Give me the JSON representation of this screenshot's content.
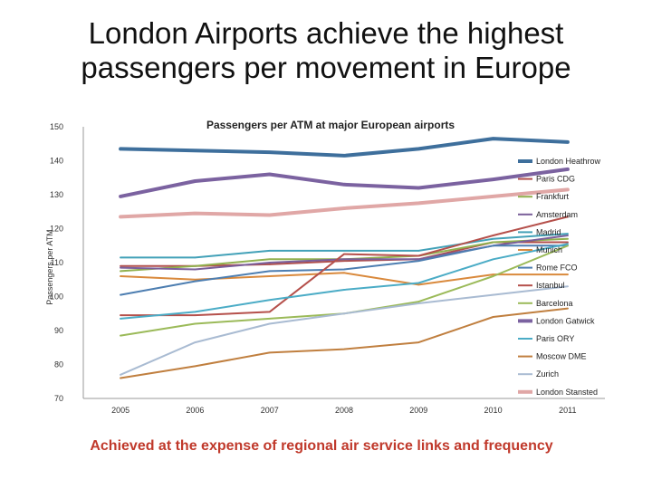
{
  "slide": {
    "title_line1": "London Airports achieve the highest",
    "title_line2": "passengers per movement in Europe",
    "footer": "Achieved at the expense of regional air service links and frequency"
  },
  "chart_data": {
    "type": "line",
    "title": "Passengers per ATM at major European airports",
    "xlabel": "",
    "ylabel": "Passengers per ATM",
    "categories": [
      "2005",
      "2006",
      "2007",
      "2008",
      "2009",
      "2010",
      "2011"
    ],
    "ylim": [
      70,
      150
    ],
    "yticks": [
      70,
      80,
      90,
      100,
      110,
      120,
      130,
      140,
      150
    ],
    "grid": false,
    "legend_position": "right",
    "series": [
      {
        "name": "London Heathrow",
        "color": "#3e6f9c",
        "width": 4,
        "values": [
          143.5,
          143,
          142.5,
          141.5,
          143.5,
          146.5,
          145.5
        ]
      },
      {
        "name": "Paris CDG",
        "color": "#b04f4c",
        "width": 2,
        "values": [
          109,
          109,
          109.5,
          110.5,
          111,
          116,
          116
        ]
      },
      {
        "name": "Frankfurt",
        "color": "#91b04e",
        "width": 2,
        "values": [
          107.5,
          109,
          111,
          111,
          112,
          116,
          117
        ]
      },
      {
        "name": "Amsterdam",
        "color": "#7a5f9a",
        "width": 2,
        "values": [
          108.5,
          108,
          110,
          111,
          111,
          115,
          118
        ]
      },
      {
        "name": "Madrid",
        "color": "#42a1b8",
        "width": 2,
        "values": [
          111.5,
          111.5,
          113.5,
          113.5,
          113.5,
          117,
          118.5
        ]
      },
      {
        "name": "Munich",
        "color": "#d9893c",
        "width": 2,
        "values": [
          106,
          105,
          106,
          107,
          103.5,
          106.5,
          106.5
        ]
      },
      {
        "name": "Rome FCO",
        "color": "#4d7eb1",
        "width": 2,
        "values": [
          100.5,
          104.5,
          107.5,
          108,
          110.5,
          115,
          115
        ]
      },
      {
        "name": "Istanbul",
        "color": "#b5504b",
        "width": 2,
        "values": [
          94.5,
          94.5,
          95.5,
          112.5,
          112,
          118,
          123.5
        ]
      },
      {
        "name": "Barcelona",
        "color": "#9bba59",
        "width": 2,
        "values": [
          88.5,
          92,
          93.5,
          95,
          98.5,
          106,
          115
        ]
      },
      {
        "name": "London Gatwick",
        "color": "#7b62a0",
        "width": 4,
        "values": [
          129.5,
          134,
          136,
          133,
          132,
          134.5,
          137.5
        ]
      },
      {
        "name": "Paris ORY",
        "color": "#4bacc6",
        "width": 2,
        "values": [
          93.5,
          95.5,
          99,
          102,
          104,
          111,
          115.5
        ]
      },
      {
        "name": "Moscow DME",
        "color": "#c07f3f",
        "width": 2,
        "values": [
          76,
          79.5,
          83.5,
          84.5,
          86.5,
          94,
          96.5
        ]
      },
      {
        "name": "Zurich",
        "color": "#a9bbd2",
        "width": 2,
        "values": [
          77,
          86.5,
          92,
          95,
          98,
          100.5,
          103
        ]
      },
      {
        "name": "London Stansted",
        "color": "#e0a7a6",
        "width": 4,
        "values": [
          123.5,
          124.5,
          124,
          126,
          127.5,
          129.5,
          131.5
        ]
      }
    ]
  }
}
